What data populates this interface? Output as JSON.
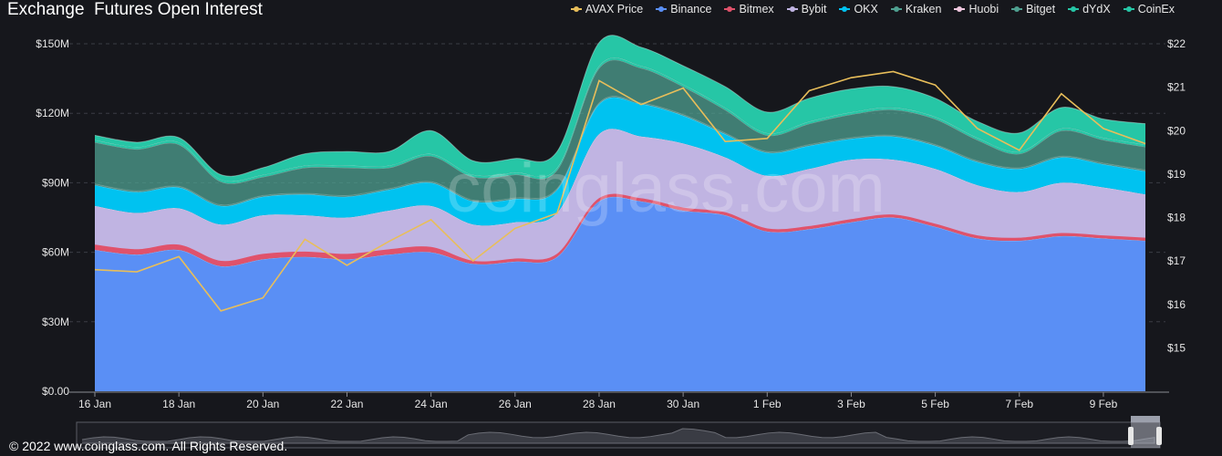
{
  "header": {
    "title": "Exchange  Futures Open Interest"
  },
  "footer": {
    "copyright": "© 2022 www.coinglass.com. All Rights Reserved."
  },
  "watermark": "coinglass.com",
  "colors": {
    "Binance": "#5a8ff5",
    "Bitmex": "#e0526b",
    "Bybit": "#c0b4e2",
    "OKX": "#00c2f0",
    "Kraken": "#4fa090",
    "Bitget": "#4fa090",
    "dYdX": "#26c6a6",
    "CoinEx": "#26c6a6",
    "AVAX Price": "#e8be5a",
    "Huobi": "#f0c8e0"
  },
  "chart_data": {
    "type": "area",
    "title": "Exchange  Futures Open Interest",
    "x": [
      "16 Jan",
      "17 Jan",
      "18 Jan",
      "19 Jan",
      "20 Jan",
      "21 Jan",
      "22 Jan",
      "23 Jan",
      "24 Jan",
      "25 Jan",
      "26 Jan",
      "27 Jan",
      "28 Jan",
      "29 Jan",
      "30 Jan",
      "31 Jan",
      "1 Feb",
      "2 Feb",
      "3 Feb",
      "4 Feb",
      "5 Feb",
      "6 Feb",
      "7 Feb",
      "8 Feb",
      "9 Feb",
      "10 Feb"
    ],
    "x_tick_labels": [
      "16 Jan",
      "18 Jan",
      "20 Jan",
      "22 Jan",
      "24 Jan",
      "26 Jan",
      "28 Jan",
      "30 Jan",
      "1 Feb",
      "3 Feb",
      "5 Feb",
      "7 Feb",
      "9 Feb"
    ],
    "y_left": {
      "ticks": [
        "$0.00",
        "$30M",
        "$60M",
        "$90M",
        "$120M",
        "$150M"
      ],
      "range": [
        0,
        150000000
      ]
    },
    "y_right": {
      "ticks": [
        "$15",
        "$16",
        "$17",
        "$18",
        "$19",
        "$20",
        "$21",
        "$22"
      ],
      "range": [
        14,
        22
      ]
    },
    "legend_position": "top-right",
    "stack_order": [
      "Binance",
      "Bitmex",
      "Bybit",
      "OKX",
      "Kraken",
      "Bitget",
      "dYdX",
      "CoinEx"
    ],
    "legend": [
      "AVAX Price",
      "Binance",
      "Bitmex",
      "Bybit",
      "OKX",
      "Kraken",
      "Huobi",
      "Bitget",
      "dYdX",
      "CoinEx"
    ],
    "series": [
      {
        "name": "Binance",
        "axis": "left",
        "values": [
          61,
          59,
          61,
          54,
          57,
          58,
          57,
          59,
          60,
          55,
          56,
          58,
          82,
          82,
          78,
          76,
          69,
          70,
          73,
          75,
          71,
          66,
          65,
          67,
          66,
          65
        ]
      },
      {
        "name": "Bitmex",
        "axis": "left",
        "values": [
          2,
          2,
          2,
          2,
          2,
          2,
          2,
          2,
          2,
          1,
          1,
          1,
          1,
          1,
          1,
          1,
          1,
          1,
          1,
          1,
          1,
          1,
          1,
          1,
          1,
          1
        ]
      },
      {
        "name": "Bybit",
        "axis": "left",
        "values": [
          17,
          16,
          16,
          16,
          17,
          16,
          16,
          17,
          18,
          16,
          16,
          18,
          28,
          27,
          28,
          24,
          23,
          25,
          26,
          24,
          24,
          22,
          20,
          22,
          21,
          19
        ]
      },
      {
        "name": "OKX",
        "axis": "left",
        "values": [
          9,
          9,
          9,
          8,
          8,
          9,
          9,
          9,
          10,
          10,
          10,
          10,
          13,
          14,
          12,
          10,
          10,
          10,
          9,
          10,
          10,
          10,
          10,
          11,
          10,
          10
        ]
      },
      {
        "name": "Kraken",
        "axis": "left",
        "values": [
          0.5,
          0.5,
          0.5,
          0.5,
          0.5,
          0.5,
          0.5,
          0.5,
          0.5,
          0.5,
          0.5,
          0.5,
          0.5,
          0.5,
          0.5,
          0.5,
          0.5,
          0.5,
          0.5,
          0.5,
          0.5,
          0.5,
          0.5,
          0.5,
          0.5,
          0.5
        ]
      },
      {
        "name": "Bitget",
        "axis": "left",
        "values": [
          18,
          18,
          18,
          10,
          8,
          11,
          12,
          9,
          11,
          10,
          10,
          8,
          15,
          15,
          12,
          10,
          7,
          9,
          10,
          11,
          11,
          9,
          6,
          11,
          10,
          10
        ]
      },
      {
        "name": "dYdX",
        "axis": "left",
        "values": [
          1,
          1,
          1,
          1,
          1,
          1,
          1,
          1,
          1,
          1,
          1,
          1,
          1,
          1,
          1,
          1,
          1,
          1,
          1,
          1,
          1,
          1,
          1,
          1,
          1,
          1
        ]
      },
      {
        "name": "CoinEx",
        "axis": "left",
        "values": [
          2,
          2,
          2,
          2,
          3,
          5,
          6,
          6,
          10,
          6,
          6,
          7,
          10,
          8,
          8,
          9,
          9,
          10,
          10,
          9,
          8,
          7,
          8,
          9,
          8,
          9
        ]
      },
      {
        "name": "AVAX Price",
        "axis": "right",
        "type": "line",
        "values": [
          16.8,
          16.75,
          17.1,
          15.85,
          16.15,
          17.5,
          16.9,
          17.45,
          17.95,
          17.0,
          17.75,
          18.1,
          21.15,
          20.6,
          20.98,
          19.75,
          19.82,
          20.92,
          21.22,
          21.36,
          21.05,
          20.05,
          19.55,
          20.85,
          20.05,
          19.7
        ]
      }
    ]
  }
}
